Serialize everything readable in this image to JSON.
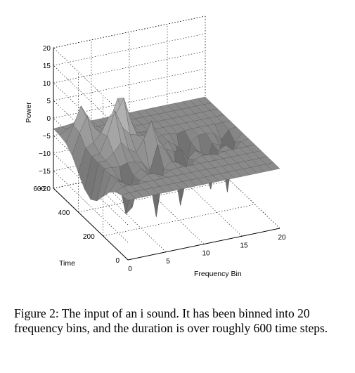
{
  "chart_data": {
    "type": "surface",
    "zlabel": "Power",
    "xlabel": "Frequency Bin",
    "ylabel": "Time",
    "zticks": [
      "20",
      "15",
      "10",
      "5",
      "0",
      "−5",
      "−10",
      "−15",
      "−20"
    ],
    "xticks": [
      "0",
      "5",
      "10",
      "15",
      "20"
    ],
    "yticks": [
      "0",
      "200",
      "400",
      "600"
    ],
    "xlim": [
      0,
      20
    ],
    "ylim": [
      0,
      600
    ],
    "zlim": [
      -20,
      20
    ],
    "grid": true,
    "surface_color": "#9a9a9a"
  },
  "caption": "Figure 2: The input of an i sound. It has been binned into 20 frequency bins, and the duration is over roughly 600 time steps."
}
